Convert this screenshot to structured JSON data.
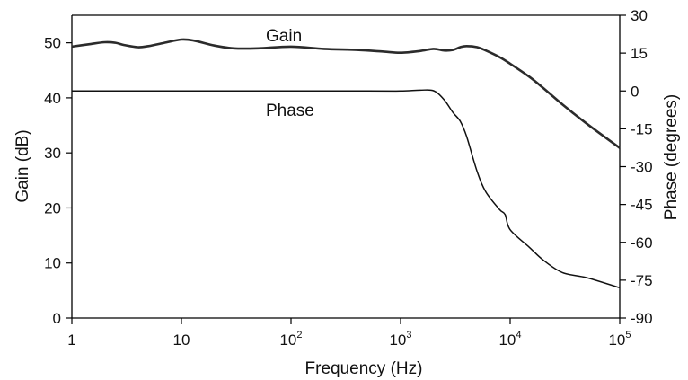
{
  "chart_data": {
    "type": "line",
    "title": "",
    "xlabel": "Frequency (Hz)",
    "ylabel": "Gain (dB)",
    "y2label": "Phase (degrees)",
    "xscale": "log",
    "xlim": [
      1,
      100000
    ],
    "ylim": [
      0,
      55
    ],
    "y2lim": [
      -90,
      30
    ],
    "grid": false,
    "x_ticks": [
      {
        "base": "1",
        "exp": ""
      },
      {
        "base": "10",
        "exp": ""
      },
      {
        "base": "10",
        "exp": "2"
      },
      {
        "base": "10",
        "exp": "3"
      },
      {
        "base": "10",
        "exp": "4"
      },
      {
        "base": "10",
        "exp": "5"
      }
    ],
    "y_ticks": [
      "0",
      "10",
      "20",
      "30",
      "40",
      "50"
    ],
    "y2_ticks": [
      "-90",
      "-75",
      "-60",
      "-45",
      "-30",
      "-15",
      "0",
      "15",
      "30"
    ],
    "series": [
      {
        "name": "Gain",
        "axis": "left",
        "x": [
          1,
          1.5,
          2,
          2.5,
          3,
          4,
          5,
          7,
          10,
          13,
          20,
          30,
          50,
          100,
          200,
          400,
          700,
          1000,
          1500,
          2000,
          2500,
          3000,
          3500,
          4000,
          5000,
          6000,
          8000,
          10000,
          15000,
          20000,
          30000,
          50000,
          100000
        ],
        "y": [
          49.3,
          49.8,
          50.1,
          50.0,
          49.6,
          49.2,
          49.4,
          50.0,
          50.6,
          50.4,
          49.5,
          49.0,
          49.0,
          49.3,
          48.9,
          48.7,
          48.4,
          48.2,
          48.5,
          48.9,
          48.6,
          48.7,
          49.2,
          49.4,
          49.2,
          48.6,
          47.4,
          46.2,
          43.8,
          41.8,
          38.8,
          35.3,
          30.9
        ]
      },
      {
        "name": "Phase",
        "axis": "right",
        "x": [
          1,
          10,
          100,
          500,
          1000,
          1500,
          2000,
          2500,
          3000,
          3500,
          4000,
          5000,
          6000,
          8000,
          9000,
          10000,
          15000,
          20000,
          30000,
          50000,
          100000
        ],
        "y": [
          0,
          0,
          0,
          0,
          0,
          0.3,
          0.1,
          -3.5,
          -8.5,
          -12,
          -18,
          -32,
          -40,
          -47,
          -49,
          -55,
          -62,
          -67,
          -72,
          -74,
          -78
        ]
      }
    ]
  }
}
